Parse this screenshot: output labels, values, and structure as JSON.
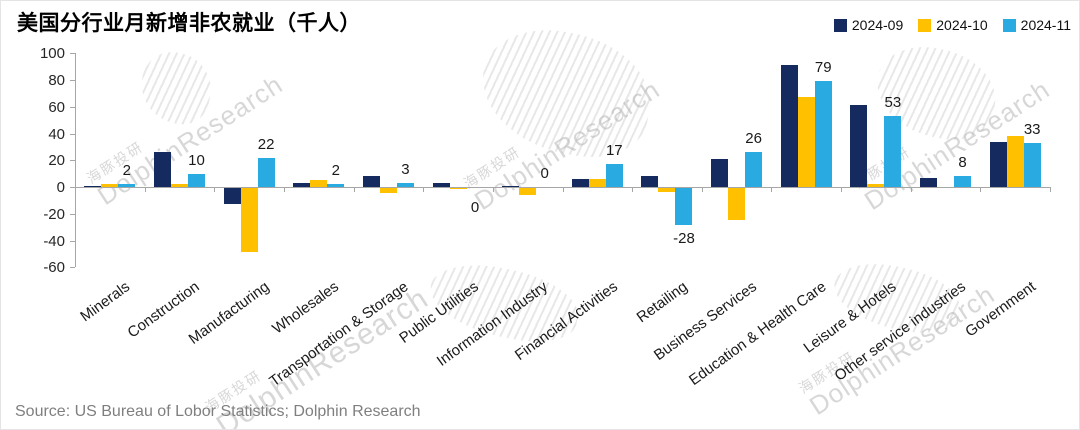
{
  "title": "美国分行业月新增非农就业（千人）",
  "source": "Source: US Bureau of Lobor Statistics; Dolphin Research",
  "watermark": {
    "cn": "海豚投研",
    "en": "DolphinResearch"
  },
  "colors": {
    "series_navy": "#152A5E",
    "series_gold": "#FFC000",
    "series_sky": "#29ABE2",
    "axis": "#A6A6A6",
    "tick_text": "#262626",
    "data_label_text": "#1A1A1A",
    "source_text": "#7F7F7F"
  },
  "chart_data": {
    "type": "bar",
    "title": "美国分行业月新增非农就业（千人）",
    "categories": [
      "Minerals",
      "Construction",
      "Manufacturing",
      "Wholesales",
      "Transportation & Storage",
      "Public Utilities",
      "Information Industry",
      "Financial Activities",
      "Retailing",
      "Business Services",
      "Education & Health Care",
      "Leisure & Hotels",
      "Other service industries",
      "Government"
    ],
    "series": [
      {
        "name": "2024-09",
        "color": "#152A5E",
        "values": [
          1,
          26,
          -12,
          3,
          8,
          3,
          1,
          6,
          8,
          21,
          91,
          61,
          7,
          34
        ]
      },
      {
        "name": "2024-10",
        "color": "#FFC000",
        "values": [
          2,
          2,
          -48,
          5,
          -4,
          -1,
          -5,
          6,
          -3,
          -24,
          67,
          2,
          0,
          38
        ]
      },
      {
        "name": "2024-11",
        "color": "#29ABE2",
        "values": [
          2,
          10,
          22,
          2,
          3,
          0,
          0,
          17,
          -28,
          26,
          79,
          53,
          8,
          33
        ],
        "data_labels": [
          "2",
          "10",
          "22",
          "2",
          "3",
          "0",
          "0",
          "17",
          "-28",
          "26",
          "79",
          "53",
          "8",
          "33"
        ],
        "label_below_axis_indices": [
          5
        ]
      }
    ],
    "labeled_series": "2024-11",
    "ylim": [
      -60,
      100
    ],
    "yticks": [
      100,
      80,
      60,
      40,
      20,
      0,
      -20,
      -40,
      -60
    ],
    "xlabel": "",
    "ylabel": "",
    "grid": false,
    "legend_position": "top-right"
  }
}
